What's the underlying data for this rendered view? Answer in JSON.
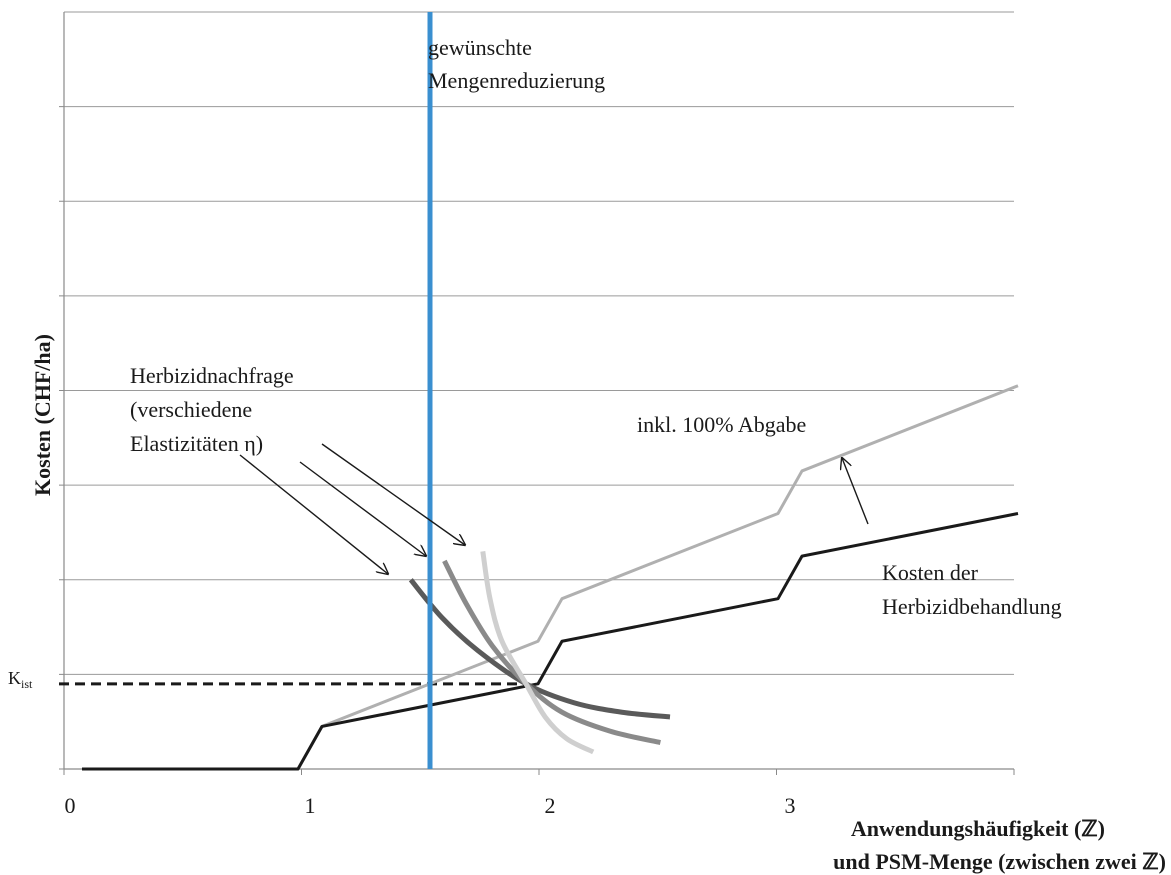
{
  "chart_data": {
    "type": "line",
    "title": "",
    "xlabel_line1": "Anwendungshäufigkeit (ℤ)",
    "xlabel_line2": "und PSM-Menge (zwischen zwei ℤ)",
    "ylabel": "Kosten (CHF/ha)",
    "x_ticks": [
      "0",
      "1",
      "2",
      "3"
    ],
    "xlim": [
      0,
      4.05
    ],
    "ylim": [
      0,
      8
    ],
    "grid": "horizontal",
    "k_ist": {
      "label_main": "K",
      "label_sub": "ist",
      "y": 0.9,
      "x_end": 1.9
    },
    "vertical_line": {
      "x": 1.5,
      "color": "#3a8fd0",
      "label_line1": "gewünschte",
      "label_line2": "Mengenreduzierung"
    },
    "series": [
      {
        "color": "#1a1a1a",
        "x": [
          0.05,
          0.95,
          1.05,
          1.95,
          2.05,
          2.95,
          3.05,
          3.95
        ],
        "y": [
          0,
          0,
          0.45,
          0.9,
          1.35,
          1.8,
          2.25,
          2.7
        ]
      },
      {
        "color": "#b0b0b0",
        "x": [
          0.05,
          0.95,
          1.05,
          1.95,
          2.05,
          2.95,
          3.05,
          3.95
        ],
        "y": [
          0,
          0,
          0.45,
          1.35,
          1.8,
          2.7,
          3.15,
          4.05
        ]
      }
    ],
    "demand_curves": [
      {
        "color": "#5a5a5a",
        "x": [
          1.42,
          1.55,
          1.7,
          1.9,
          2.1,
          2.3,
          2.5
        ],
        "y": [
          2.0,
          1.6,
          1.25,
          0.9,
          0.7,
          0.6,
          0.55
        ]
      },
      {
        "color": "#8a8a8a",
        "x": [
          1.56,
          1.65,
          1.76,
          1.9,
          2.05,
          2.25,
          2.46
        ],
        "y": [
          2.2,
          1.75,
          1.3,
          0.9,
          0.6,
          0.4,
          0.28
        ]
      },
      {
        "color": "#cfcfcf",
        "x": [
          1.72,
          1.75,
          1.8,
          1.9,
          1.98,
          2.07,
          2.18
        ],
        "y": [
          2.3,
          1.8,
          1.35,
          0.9,
          0.55,
          0.32,
          0.18
        ]
      }
    ],
    "annotations": {
      "demand_line1": "Herbizidnachfrage",
      "demand_line2": "(verschiedene",
      "demand_line3": "Elastizitäten η)",
      "tax_label": "inkl. 100% Abgabe",
      "cost_line1": "Kosten der",
      "cost_line2": "Herbizidbehandlung"
    }
  }
}
